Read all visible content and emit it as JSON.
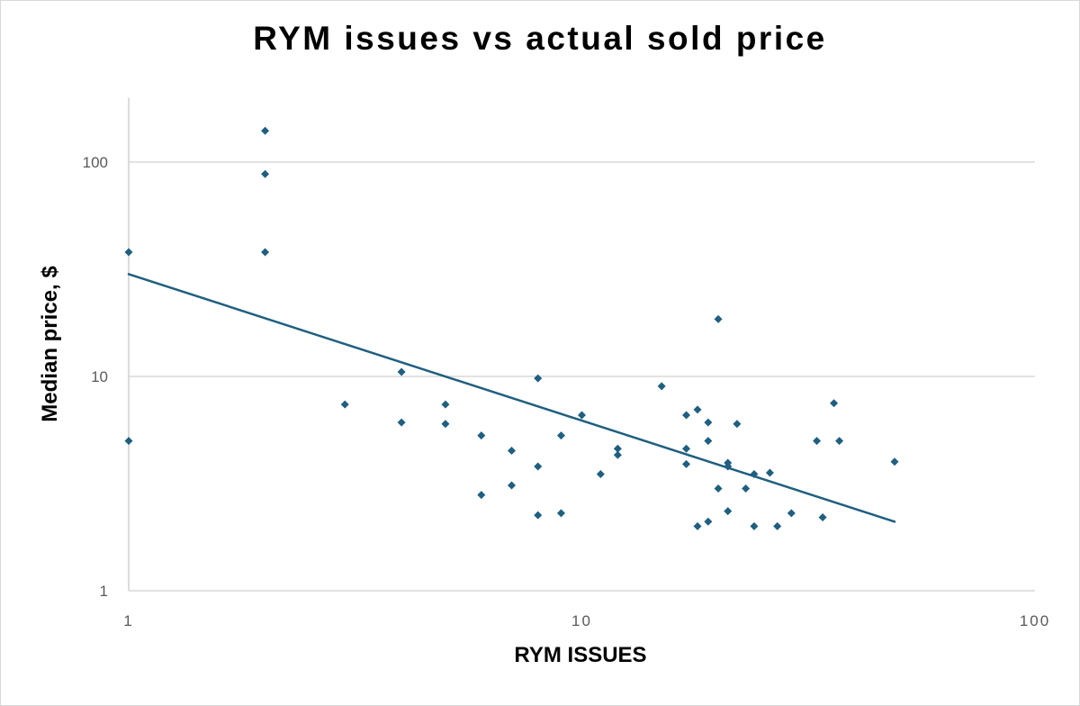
{
  "chart_data": {
    "type": "scatter",
    "title": "RYM issues vs actual sold price",
    "xlabel": "RYM ISSUES",
    "ylabel": "Median price, $",
    "xscale": "log",
    "yscale": "log",
    "xlim": [
      1,
      100
    ],
    "ylim": [
      1,
      200
    ],
    "xticks": [
      {
        "value": 1,
        "label": "1"
      },
      {
        "value": 10,
        "label": "10"
      },
      {
        "value": 100,
        "label": "100"
      }
    ],
    "yticks": [
      {
        "value": 1,
        "label": "1"
      },
      {
        "value": 10,
        "label": "10"
      },
      {
        "value": 100,
        "label": "100"
      }
    ],
    "grid": true,
    "marker_color": "#1f5f80",
    "trendline": {
      "type": "power",
      "x": [
        1,
        49
      ],
      "y": [
        30,
        2.1
      ],
      "color": "#1f5f80"
    },
    "points": [
      {
        "x": 1,
        "y": 38
      },
      {
        "x": 1,
        "y": 5
      },
      {
        "x": 2,
        "y": 140
      },
      {
        "x": 2,
        "y": 88
      },
      {
        "x": 2,
        "y": 38
      },
      {
        "x": 3,
        "y": 7.4
      },
      {
        "x": 4,
        "y": 10.5
      },
      {
        "x": 4,
        "y": 6.1
      },
      {
        "x": 5,
        "y": 7.4
      },
      {
        "x": 5,
        "y": 6.0
      },
      {
        "x": 6,
        "y": 5.3
      },
      {
        "x": 6,
        "y": 2.8
      },
      {
        "x": 7,
        "y": 4.5
      },
      {
        "x": 7,
        "y": 3.1
      },
      {
        "x": 8,
        "y": 9.8
      },
      {
        "x": 8,
        "y": 3.8
      },
      {
        "x": 8,
        "y": 2.25
      },
      {
        "x": 9,
        "y": 5.3
      },
      {
        "x": 9,
        "y": 2.3
      },
      {
        "x": 10,
        "y": 6.6
      },
      {
        "x": 11,
        "y": 3.5
      },
      {
        "x": 12,
        "y": 4.6
      },
      {
        "x": 12,
        "y": 4.3
      },
      {
        "x": 15,
        "y": 9.0
      },
      {
        "x": 17,
        "y": 6.6
      },
      {
        "x": 17,
        "y": 4.6
      },
      {
        "x": 17,
        "y": 3.9
      },
      {
        "x": 18,
        "y": 7.0
      },
      {
        "x": 18,
        "y": 2.0
      },
      {
        "x": 19,
        "y": 6.1
      },
      {
        "x": 19,
        "y": 5.0
      },
      {
        "x": 19,
        "y": 2.1
      },
      {
        "x": 20,
        "y": 18.5
      },
      {
        "x": 20,
        "y": 3.0
      },
      {
        "x": 21,
        "y": 3.95
      },
      {
        "x": 21,
        "y": 3.8
      },
      {
        "x": 21,
        "y": 2.35
      },
      {
        "x": 22,
        "y": 6.0
      },
      {
        "x": 23,
        "y": 3.0
      },
      {
        "x": 24,
        "y": 3.5
      },
      {
        "x": 24,
        "y": 2.0
      },
      {
        "x": 26,
        "y": 3.55
      },
      {
        "x": 27,
        "y": 2.0
      },
      {
        "x": 29,
        "y": 2.3
      },
      {
        "x": 33,
        "y": 5.0
      },
      {
        "x": 34,
        "y": 2.2
      },
      {
        "x": 36,
        "y": 7.5
      },
      {
        "x": 37,
        "y": 5.0
      },
      {
        "x": 49,
        "y": 4.0
      }
    ]
  }
}
